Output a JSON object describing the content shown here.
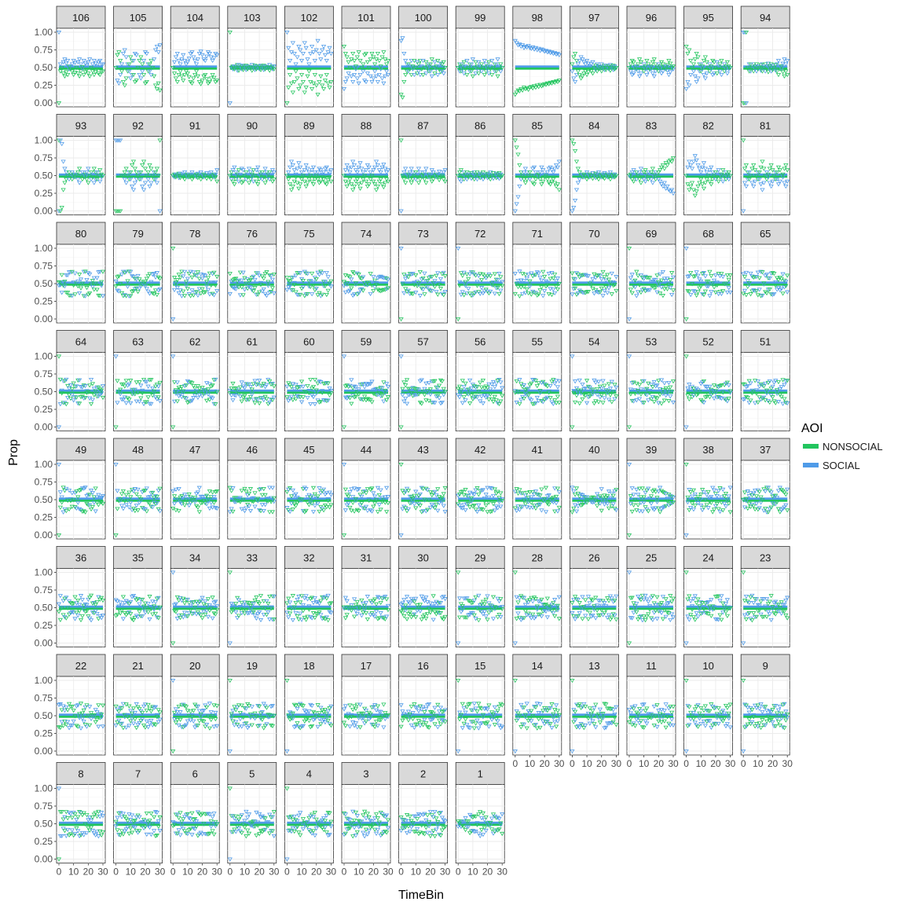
{
  "chart_data": {
    "type": "scatter",
    "facet_by": "participant",
    "xlabel": "TimeBin",
    "ylabel": "Prop",
    "xlim": [
      0,
      30
    ],
    "ylim": [
      0,
      1
    ],
    "x_ticks": [
      0,
      10,
      20,
      30
    ],
    "y_ticks": [
      "0.00",
      "0.25",
      "0.50",
      "0.75",
      "1.00"
    ],
    "grid": true,
    "legend": {
      "title": "AOI",
      "placement": "right",
      "entries": [
        {
          "name": "NONSOCIAL",
          "color": "#22c55e"
        },
        {
          "name": "SOCIAL",
          "color": "#4f9be8"
        }
      ]
    },
    "series": [
      {
        "name": "NONSOCIAL",
        "color": "#22c55e",
        "mean_band": [
          0.47,
          0.5
        ]
      },
      {
        "name": "SOCIAL",
        "color": "#4f9be8",
        "mean_band": [
          0.5,
          0.53
        ]
      }
    ],
    "marker": "open-triangle-down",
    "panels": [
      "106",
      "105",
      "104",
      "103",
      "102",
      "101",
      "100",
      "99",
      "98",
      "97",
      "96",
      "95",
      "94",
      "93",
      "92",
      "91",
      "90",
      "89",
      "88",
      "87",
      "86",
      "85",
      "84",
      "83",
      "82",
      "81",
      "80",
      "79",
      "78",
      "76",
      "75",
      "74",
      "73",
      "72",
      "71",
      "70",
      "69",
      "68",
      "65",
      "64",
      "63",
      "62",
      "61",
      "60",
      "59",
      "57",
      "56",
      "55",
      "54",
      "53",
      "52",
      "51",
      "49",
      "48",
      "47",
      "46",
      "45",
      "44",
      "43",
      "42",
      "41",
      "40",
      "39",
      "38",
      "37",
      "36",
      "35",
      "34",
      "33",
      "32",
      "31",
      "30",
      "29",
      "28",
      "26",
      "25",
      "24",
      "23",
      "22",
      "21",
      "20",
      "19",
      "18",
      "17",
      "16",
      "15",
      "14",
      "13",
      "11",
      "10",
      "9",
      "8",
      "7",
      "6",
      "5",
      "4",
      "3",
      "2",
      "1"
    ],
    "note_values": "Per-time-bin SOCIAL proportion estimated from dot positions; NONSOCIAL = 1 - SOCIAL.",
    "social_by_panel": {
      "106": [
        1.0,
        0.55,
        0.5,
        0.58,
        0.62,
        0.56,
        0.6,
        0.48,
        0.52,
        0.55,
        0.6,
        0.57,
        0.5,
        0.58,
        0.62,
        0.55,
        0.49,
        0.6,
        0.56,
        0.53,
        0.58,
        0.62,
        0.5,
        0.55,
        0.6,
        0.56,
        0.52,
        0.58,
        0.6,
        0.55,
        0.55
      ],
      "105": [
        0.5,
        0.32,
        0.28,
        0.4,
        0.55,
        0.7,
        0.75,
        0.65,
        0.55,
        0.45,
        0.35,
        0.4,
        0.6,
        0.7,
        0.68,
        0.5,
        0.4,
        0.35,
        0.45,
        0.6,
        0.72,
        0.7,
        0.55,
        0.45,
        0.4,
        0.5,
        0.62,
        0.75,
        0.8,
        0.72,
        0.82
      ],
      "104": [
        0.5,
        0.58,
        0.65,
        0.7,
        0.6,
        0.55,
        0.62,
        0.68,
        0.6,
        0.55,
        0.58,
        0.63,
        0.7,
        0.72,
        0.65,
        0.6,
        0.55,
        0.62,
        0.7,
        0.73,
        0.68,
        0.62,
        0.6,
        0.66,
        0.72,
        0.7,
        0.65,
        0.6,
        0.64,
        0.7,
        0.68
      ],
      "103": [
        0.0,
        0.5,
        0.48,
        0.52,
        0.5,
        0.46,
        0.54,
        0.5,
        0.48,
        0.53,
        0.5,
        0.47,
        0.52,
        0.5,
        0.49,
        0.54,
        0.5,
        0.47,
        0.52,
        0.5,
        0.48,
        0.53,
        0.5,
        0.47,
        0.52,
        0.5,
        0.49,
        0.54,
        0.5,
        0.48,
        0.52
      ],
      "102": [
        1.0,
        0.78,
        0.6,
        0.72,
        0.85,
        0.7,
        0.55,
        0.65,
        0.8,
        0.75,
        0.6,
        0.7,
        0.85,
        0.78,
        0.62,
        0.55,
        0.7,
        0.8,
        0.72,
        0.6,
        0.75,
        0.88,
        0.7,
        0.62,
        0.75,
        0.8,
        0.68,
        0.6,
        0.72,
        0.78,
        0.7
      ],
      "101": [
        0.2,
        0.3,
        0.35,
        0.42,
        0.5,
        0.38,
        0.3,
        0.4,
        0.48,
        0.35,
        0.28,
        0.4,
        0.5,
        0.45,
        0.32,
        0.3,
        0.42,
        0.5,
        0.38,
        0.3,
        0.35,
        0.45,
        0.38,
        0.3,
        0.4,
        0.48,
        0.35,
        0.28,
        0.38,
        0.45,
        0.4
      ],
      "100": [
        0.88,
        0.92,
        0.7,
        0.6,
        0.55,
        0.45,
        0.52,
        0.6,
        0.48,
        0.4,
        0.5,
        0.58,
        0.45,
        0.4,
        0.52,
        0.6,
        0.5,
        0.42,
        0.48,
        0.55,
        0.45,
        0.38,
        0.5,
        0.58,
        0.48,
        0.4,
        0.52,
        0.56,
        0.45,
        0.42,
        0.5
      ],
      "99": [
        0.5,
        0.45,
        0.55,
        0.48,
        0.42,
        0.52,
        0.6,
        0.5,
        0.45,
        0.55,
        0.62,
        0.5,
        0.42,
        0.48,
        0.58,
        0.52,
        0.45,
        0.5,
        0.6,
        0.55,
        0.48,
        0.42,
        0.52,
        0.6,
        0.5,
        0.45,
        0.55,
        0.62,
        0.52,
        0.45,
        0.5
      ],
      "98": [
        0.88,
        0.85,
        0.82,
        0.83,
        0.8,
        0.82,
        0.78,
        0.8,
        0.79,
        0.81,
        0.78,
        0.77,
        0.79,
        0.76,
        0.78,
        0.75,
        0.77,
        0.74,
        0.76,
        0.75,
        0.73,
        0.74,
        0.72,
        0.73,
        0.71,
        0.72,
        0.7,
        0.71,
        0.69,
        0.7,
        0.68
      ],
      "97": [
        0.45,
        0.35,
        0.3,
        0.4,
        0.55,
        0.6,
        0.65,
        0.62,
        0.58,
        0.55,
        0.6,
        0.56,
        0.52,
        0.55,
        0.58,
        0.5,
        0.47,
        0.55,
        0.52,
        0.49,
        0.55,
        0.5,
        0.47,
        0.53,
        0.5,
        0.48,
        0.54,
        0.5,
        0.47,
        0.52,
        0.5
      ],
      "96": [
        0.5,
        0.45,
        0.4,
        0.42,
        0.48,
        0.52,
        0.45,
        0.38,
        0.42,
        0.5,
        0.55,
        0.48,
        0.4,
        0.45,
        0.52,
        0.48,
        0.42,
        0.38,
        0.45,
        0.5,
        0.55,
        0.48,
        0.42,
        0.45,
        0.5,
        0.52,
        0.46,
        0.4,
        0.44,
        0.5,
        0.48
      ],
      "95": [
        0.2,
        0.3,
        0.25,
        0.4,
        0.5,
        0.45,
        0.38,
        0.3,
        0.35,
        0.45,
        0.55,
        0.48,
        0.4,
        0.35,
        0.42,
        0.5,
        0.55,
        0.48,
        0.4,
        0.42,
        0.5,
        0.58,
        0.52,
        0.45,
        0.4,
        0.5,
        0.55,
        0.48,
        0.42,
        0.48,
        0.5
      ],
      "94": [
        1.0,
        1.0,
        0.0,
        0.5,
        0.55,
        0.45,
        0.5,
        0.55,
        0.48,
        0.45,
        0.52,
        0.5,
        0.46,
        0.55,
        0.5,
        0.45,
        0.52,
        0.56,
        0.48,
        0.45,
        0.53,
        0.5,
        0.46,
        0.55,
        0.6,
        0.52,
        0.48,
        0.56,
        0.62,
        0.55,
        0.6
      ],
      "93": [
        0.0,
        1.0,
        0.95,
        0.7,
        0.6,
        0.55,
        0.5,
        0.45,
        0.5,
        0.55,
        0.48,
        0.52,
        0.5,
        0.45,
        0.4,
        0.5,
        0.55,
        0.52,
        0.48,
        0.55,
        0.6,
        0.5,
        0.45,
        0.52,
        0.4,
        0.45,
        0.55,
        0.5,
        0.42,
        0.48,
        0.5
      ],
      "92": [
        1.0,
        1.0,
        1.0,
        1.0,
        0.5,
        0.5,
        0.45,
        0.4,
        0.5,
        0.55,
        0.45,
        0.35,
        0.3,
        0.4,
        0.45,
        0.5,
        0.55,
        0.45,
        0.35,
        0.3,
        0.4,
        0.5,
        0.45,
        0.35,
        0.4,
        0.5,
        0.55,
        0.45,
        0.4,
        0.5,
        0.0
      ],
      "91": [
        0.5,
        0.48,
        0.52,
        0.5,
        0.47,
        0.53,
        0.5,
        0.52,
        0.55,
        0.5,
        0.48,
        0.52,
        0.5,
        0.55,
        0.52,
        0.5,
        0.48,
        0.53,
        0.5,
        0.55,
        0.52,
        0.48,
        0.5,
        0.54,
        0.5,
        0.52,
        0.55,
        0.5,
        0.48,
        0.52,
        0.58
      ],
      "90": [
        0.5,
        0.45,
        0.58,
        0.62,
        0.55,
        0.48,
        0.42,
        0.52,
        0.6,
        0.58,
        0.5,
        0.45,
        0.52,
        0.6,
        0.55,
        0.48,
        0.42,
        0.5,
        0.58,
        0.62,
        0.55,
        0.48,
        0.45,
        0.52,
        0.6,
        0.55,
        0.48,
        0.45,
        0.52,
        0.58,
        0.55
      ],
      "89": [
        0.5,
        0.55,
        0.62,
        0.7,
        0.65,
        0.58,
        0.52,
        0.6,
        0.68,
        0.62,
        0.55,
        0.5,
        0.58,
        0.65,
        0.6,
        0.55,
        0.5,
        0.58,
        0.62,
        0.55,
        0.5,
        0.55,
        0.6,
        0.58,
        0.52,
        0.55,
        0.6,
        0.62,
        0.56,
        0.52,
        0.58
      ],
      "88": [
        0.5,
        0.58,
        0.65,
        0.6,
        0.55,
        0.62,
        0.7,
        0.65,
        0.58,
        0.55,
        0.62,
        0.68,
        0.6,
        0.55,
        0.5,
        0.58,
        0.65,
        0.62,
        0.55,
        0.5,
        0.58,
        0.62,
        0.7,
        0.65,
        0.58,
        0.55,
        0.62,
        0.66,
        0.6,
        0.55,
        0.58
      ],
      "87": [
        0.0,
        0.5,
        0.55,
        0.6,
        0.52,
        0.48,
        0.55,
        0.6,
        0.55,
        0.5,
        0.45,
        0.52,
        0.6,
        0.55,
        0.5,
        0.48,
        0.55,
        0.6,
        0.52,
        0.48,
        0.52,
        0.58,
        0.55,
        0.5,
        0.48,
        0.52,
        0.56,
        0.52,
        0.5,
        0.55,
        0.58
      ],
      "86": [
        0.5,
        0.45,
        0.42,
        0.5,
        0.55,
        0.48,
        0.45,
        0.52,
        0.5,
        0.46,
        0.52,
        0.55,
        0.48,
        0.45,
        0.5,
        0.53,
        0.48,
        0.45,
        0.52,
        0.5,
        0.47,
        0.52,
        0.55,
        0.5,
        0.46,
        0.5,
        0.53,
        0.48,
        0.46,
        0.52,
        0.5
      ],
      "85": [
        0.0,
        0.1,
        0.2,
        0.35,
        0.45,
        0.5,
        0.55,
        0.6,
        0.55,
        0.5,
        0.45,
        0.5,
        0.6,
        0.62,
        0.55,
        0.5,
        0.48,
        0.55,
        0.62,
        0.58,
        0.52,
        0.5,
        0.55,
        0.6,
        0.62,
        0.58,
        0.55,
        0.6,
        0.65,
        0.62,
        0.7
      ],
      "84": [
        0.0,
        0.05,
        0.15,
        0.3,
        0.4,
        0.45,
        0.5,
        0.52,
        0.48,
        0.5,
        0.55,
        0.52,
        0.48,
        0.5,
        0.54,
        0.5,
        0.47,
        0.52,
        0.55,
        0.5,
        0.48,
        0.52,
        0.54,
        0.5,
        0.48,
        0.52,
        0.55,
        0.5,
        0.48,
        0.52,
        0.5
      ],
      "83": [
        0.5,
        0.48,
        0.55,
        0.58,
        0.52,
        0.45,
        0.5,
        0.55,
        0.6,
        0.52,
        0.45,
        0.42,
        0.48,
        0.55,
        0.52,
        0.45,
        0.4,
        0.48,
        0.55,
        0.5,
        0.45,
        0.42,
        0.38,
        0.35,
        0.4,
        0.32,
        0.35,
        0.3,
        0.28,
        0.3,
        0.25
      ],
      "82": [
        0.5,
        0.62,
        0.7,
        0.65,
        0.6,
        0.7,
        0.78,
        0.72,
        0.65,
        0.6,
        0.55,
        0.62,
        0.68,
        0.6,
        0.55,
        0.5,
        0.58,
        0.62,
        0.55,
        0.5,
        0.45,
        0.52,
        0.58,
        0.52,
        0.48,
        0.42,
        0.5,
        0.55,
        0.48,
        0.45,
        0.5
      ],
      "81": [
        0.0,
        0.4,
        0.35,
        0.45,
        0.55,
        0.5,
        0.4,
        0.35,
        0.42,
        0.5,
        0.55,
        0.45,
        0.38,
        0.3,
        0.4,
        0.5,
        0.55,
        0.48,
        0.4,
        0.35,
        0.42,
        0.5,
        0.55,
        0.45,
        0.38,
        0.42,
        0.5,
        0.48,
        0.4,
        0.35,
        0.42
      ]
    }
  }
}
